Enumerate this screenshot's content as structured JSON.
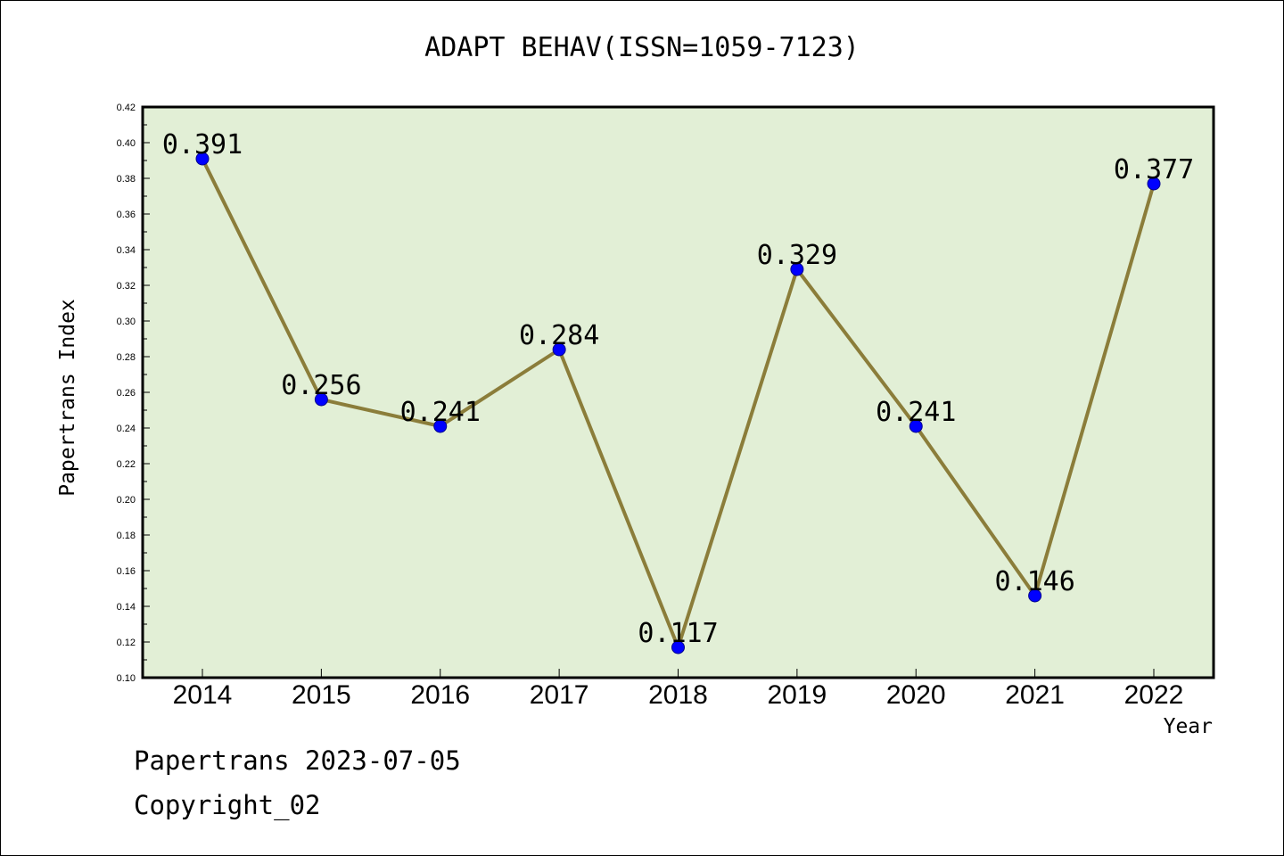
{
  "chart_data": {
    "type": "line",
    "title": "ADAPT BEHAV(ISSN=1059-7123)",
    "xlabel": "Year",
    "ylabel": "Papertrans Index",
    "categories": [
      "2014",
      "2015",
      "2016",
      "2017",
      "2018",
      "2019",
      "2020",
      "2021",
      "2022"
    ],
    "values": [
      0.391,
      0.256,
      0.241,
      0.284,
      0.117,
      0.329,
      0.241,
      0.146,
      0.377
    ],
    "data_labels": [
      "0.391",
      "0.256",
      "0.241",
      "0.284",
      "0.117",
      "0.329",
      "0.241",
      "0.146",
      "0.377"
    ],
    "ylim": [
      0.1,
      0.42
    ],
    "yticks": [
      "0.10",
      "0.12",
      "0.14",
      "0.16",
      "0.18",
      "0.20",
      "0.22",
      "0.24",
      "0.26",
      "0.28",
      "0.30",
      "0.32",
      "0.34",
      "0.36",
      "0.38",
      "0.40",
      "0.42"
    ],
    "grid": false,
    "colors": {
      "plot_background": "#e2efd6",
      "line": "#8b7d3a",
      "marker": "#0000ff"
    }
  },
  "footer": {
    "line1": "Papertrans 2023-07-05",
    "line2": "Copyright_02"
  }
}
